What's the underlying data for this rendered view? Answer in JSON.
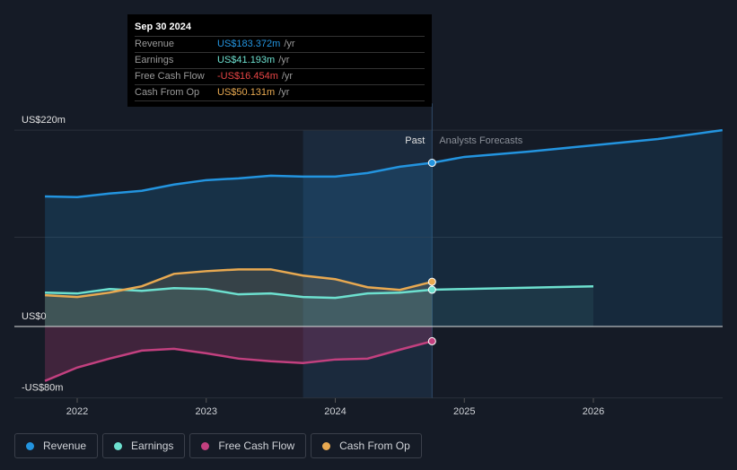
{
  "tooltip": {
    "date": "Sep 30 2024",
    "rows": [
      {
        "label": "Revenue",
        "value": "US$183.372m",
        "unit": "/yr",
        "color": "#2394df"
      },
      {
        "label": "Earnings",
        "value": "US$41.193m",
        "unit": "/yr",
        "color": "#6de0cf"
      },
      {
        "label": "Free Cash Flow",
        "value": "-US$16.454m",
        "unit": "/yr",
        "color": "#e84545"
      },
      {
        "label": "Cash From Op",
        "value": "US$50.131m",
        "unit": "/yr",
        "color": "#e8a951"
      }
    ]
  },
  "chart_data": {
    "type": "line",
    "ylim": [
      -80,
      220
    ],
    "xlim": [
      2021.6,
      2027.0
    ],
    "y_tick_labels": [
      {
        "v": 220,
        "t": "US$220m"
      },
      {
        "v": 0,
        "t": "US$0"
      },
      {
        "v": -80,
        "t": "-US$80m"
      }
    ],
    "x_tick_labels": [
      "2022",
      "2023",
      "2024",
      "2025",
      "2026"
    ],
    "annotations": {
      "past": "Past",
      "forecast": "Analysts Forecasts"
    },
    "past_end": 2024.75,
    "highlight_start": 2023.75,
    "series": [
      {
        "name": "Revenue",
        "color": "#2394df",
        "x": [
          2021.75,
          2022,
          2022.25,
          2022.5,
          2022.75,
          2023,
          2023.25,
          2023.5,
          2023.75,
          2024,
          2024.25,
          2024.5,
          2024.75
        ],
        "values": [
          145.7,
          145,
          149,
          152,
          159,
          164,
          166,
          169,
          168,
          168,
          172,
          179,
          183.4
        ],
        "forecast_x": [
          2024.75,
          2025,
          2025.5,
          2026,
          2026.5,
          2027
        ],
        "forecast": [
          183.4,
          190,
          196,
          203,
          210,
          220
        ]
      },
      {
        "name": "Earnings",
        "color": "#6de0cf",
        "x": [
          2021.75,
          2022,
          2022.25,
          2022.5,
          2022.75,
          2023,
          2023.25,
          2023.5,
          2023.75,
          2024,
          2024.25,
          2024.5,
          2024.75
        ],
        "values": [
          38,
          37,
          42,
          40,
          43,
          42,
          36,
          37,
          33,
          32,
          37,
          38,
          41.2
        ],
        "forecast_x": [
          2024.75,
          2025,
          2026
        ],
        "forecast": [
          41.2,
          42,
          45
        ]
      },
      {
        "name": "Free Cash Flow",
        "color": "#c2407f",
        "x": [
          2021.75,
          2022,
          2022.25,
          2022.5,
          2022.75,
          2023,
          2023.25,
          2023.5,
          2023.75,
          2024,
          2024.25,
          2024.5,
          2024.75
        ],
        "values": [
          -61,
          -46,
          -36,
          -27,
          -25,
          -30,
          -36,
          -39,
          -41,
          -37,
          -36,
          -26,
          -16.5
        ]
      },
      {
        "name": "Cash From Op",
        "color": "#e8a951",
        "x": [
          2021.75,
          2022,
          2022.25,
          2022.5,
          2022.75,
          2023,
          2023.25,
          2023.5,
          2023.75,
          2024,
          2024.25,
          2024.5,
          2024.75
        ],
        "values": [
          35,
          33,
          38,
          45,
          59,
          62,
          64,
          64,
          57,
          53,
          44,
          41,
          50.1
        ]
      }
    ]
  }
}
